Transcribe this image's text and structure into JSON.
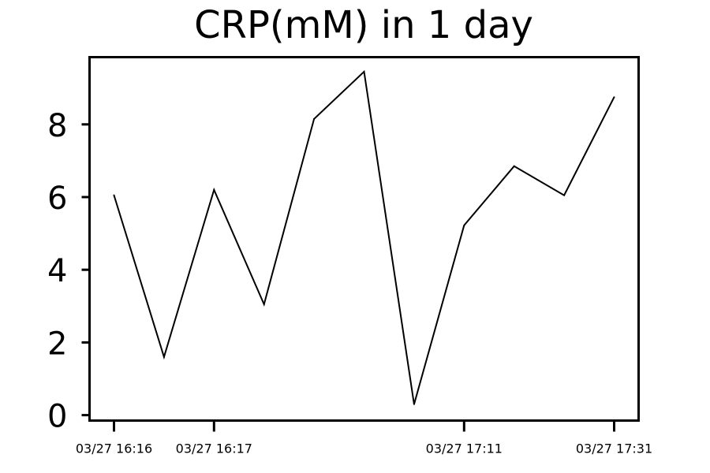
{
  "chart_data": {
    "type": "line",
    "title": "CRP(mM) in 1 day",
    "xlabel": "",
    "ylabel": "",
    "x_index": [
      0,
      1,
      2,
      3,
      4,
      5,
      6,
      7,
      8,
      9,
      10
    ],
    "xticks": [
      {
        "index": 0,
        "label": "03/27 16:16"
      },
      {
        "index": 2,
        "label": "03/27 16:17"
      },
      {
        "index": 7,
        "label": "03/27 17:11"
      },
      {
        "index": 10,
        "label": "03/27 17:31"
      }
    ],
    "series": [
      {
        "values": [
          6.05,
          1.6,
          6.2,
          3.05,
          8.15,
          9.45,
          0.3,
          5.22,
          6.85,
          6.05,
          8.75
        ]
      }
    ],
    "ylim": [
      -0.15,
      9.85
    ],
    "yticks": [
      0,
      2,
      4,
      6,
      8
    ],
    "line_color": "#000000",
    "grid": false,
    "legend": "none"
  }
}
